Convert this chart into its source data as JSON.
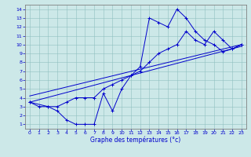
{
  "xlabel": "Graphe des températures (°c)",
  "bg_color": "#cce8e8",
  "line_color": "#0000cc",
  "xlim": [
    -0.5,
    23.5
  ],
  "ylim": [
    0.5,
    14.5
  ],
  "xticks": [
    0,
    1,
    2,
    3,
    4,
    5,
    6,
    7,
    8,
    9,
    10,
    11,
    12,
    13,
    14,
    15,
    16,
    17,
    18,
    19,
    20,
    21,
    22,
    23
  ],
  "yticks": [
    1,
    2,
    3,
    4,
    5,
    6,
    7,
    8,
    9,
    10,
    11,
    12,
    13,
    14
  ],
  "line1_x": [
    0,
    1,
    2,
    3,
    4,
    5,
    6,
    7,
    8,
    9,
    10,
    11,
    12,
    13,
    14,
    15,
    16,
    17,
    18,
    19,
    20,
    21,
    22,
    23
  ],
  "line1_y": [
    3.5,
    3.0,
    3.0,
    2.5,
    1.5,
    1.0,
    1.0,
    1.0,
    4.5,
    2.5,
    5.0,
    6.5,
    7.5,
    13.0,
    12.5,
    12.0,
    14.0,
    13.0,
    11.5,
    10.5,
    10.0,
    9.2,
    9.5,
    10.0
  ],
  "line2_x": [
    0,
    2,
    3,
    4,
    5,
    6,
    7,
    8,
    9,
    10,
    11,
    12,
    13,
    14,
    15,
    16,
    17,
    18,
    19,
    20,
    21,
    22,
    23
  ],
  "line2_y": [
    3.5,
    3.0,
    3.0,
    3.5,
    4.0,
    4.0,
    4.0,
    5.0,
    5.5,
    6.0,
    6.5,
    7.0,
    8.0,
    9.0,
    9.5,
    10.0,
    11.5,
    10.5,
    10.0,
    11.5,
    10.5,
    9.5,
    10.0
  ],
  "line3_x": [
    0,
    23
  ],
  "line3_y": [
    3.5,
    9.8
  ],
  "line4_x": [
    0,
    23
  ],
  "line4_y": [
    4.2,
    10.0
  ]
}
